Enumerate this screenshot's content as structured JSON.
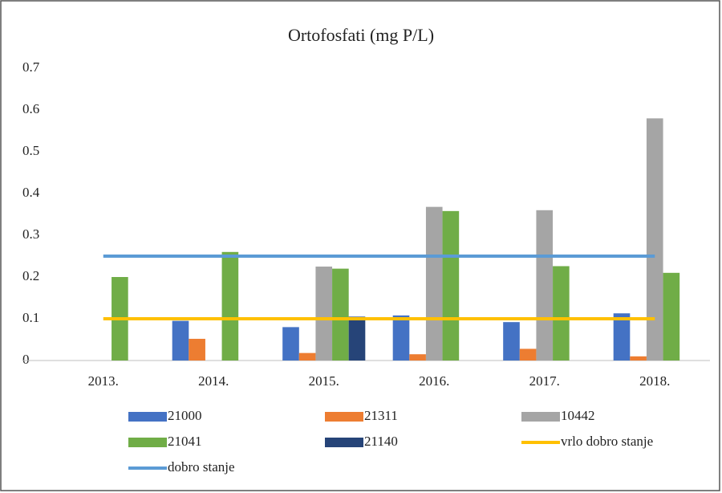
{
  "chart_data": {
    "type": "bar",
    "title": "Ortofosfati (mg P/L)",
    "categories": [
      "2013.",
      "2014.",
      "2015.",
      "2016.",
      "2017.",
      "2018."
    ],
    "series": [
      {
        "name": "21000",
        "color": "#4472c4",
        "values": [
          null,
          0.095,
          0.08,
          0.108,
          0.092,
          0.113
        ]
      },
      {
        "name": "21311",
        "color": "#ed7d31",
        "values": [
          null,
          0.052,
          0.018,
          0.015,
          0.028,
          0.01
        ]
      },
      {
        "name": "10442",
        "color": "#a5a5a5",
        "values": [
          null,
          null,
          0.225,
          0.368,
          0.36,
          0.58
        ]
      },
      {
        "name": "21041",
        "color": "#70ad47",
        "values": [
          0.2,
          0.26,
          0.22,
          0.358,
          0.226,
          0.21
        ]
      },
      {
        "name": "21140",
        "color": "#264478",
        "values": [
          null,
          null,
          0.105,
          null,
          null,
          null
        ]
      },
      {
        "name": "vrlo dobro stanje",
        "color": "#ffc000",
        "type": "line",
        "values": [
          0.1,
          0.1,
          0.1,
          0.1,
          0.1,
          0.1
        ]
      },
      {
        "name": "dobro stanje",
        "color": "#5b9bd5",
        "type": "line",
        "values": [
          0.25,
          0.25,
          0.25,
          0.25,
          0.25,
          0.25
        ]
      }
    ],
    "ylim": [
      0,
      0.7
    ],
    "yticks": [
      0,
      0.1,
      0.2,
      0.3,
      0.4,
      0.5,
      0.6,
      0.7
    ],
    "grid": false
  }
}
